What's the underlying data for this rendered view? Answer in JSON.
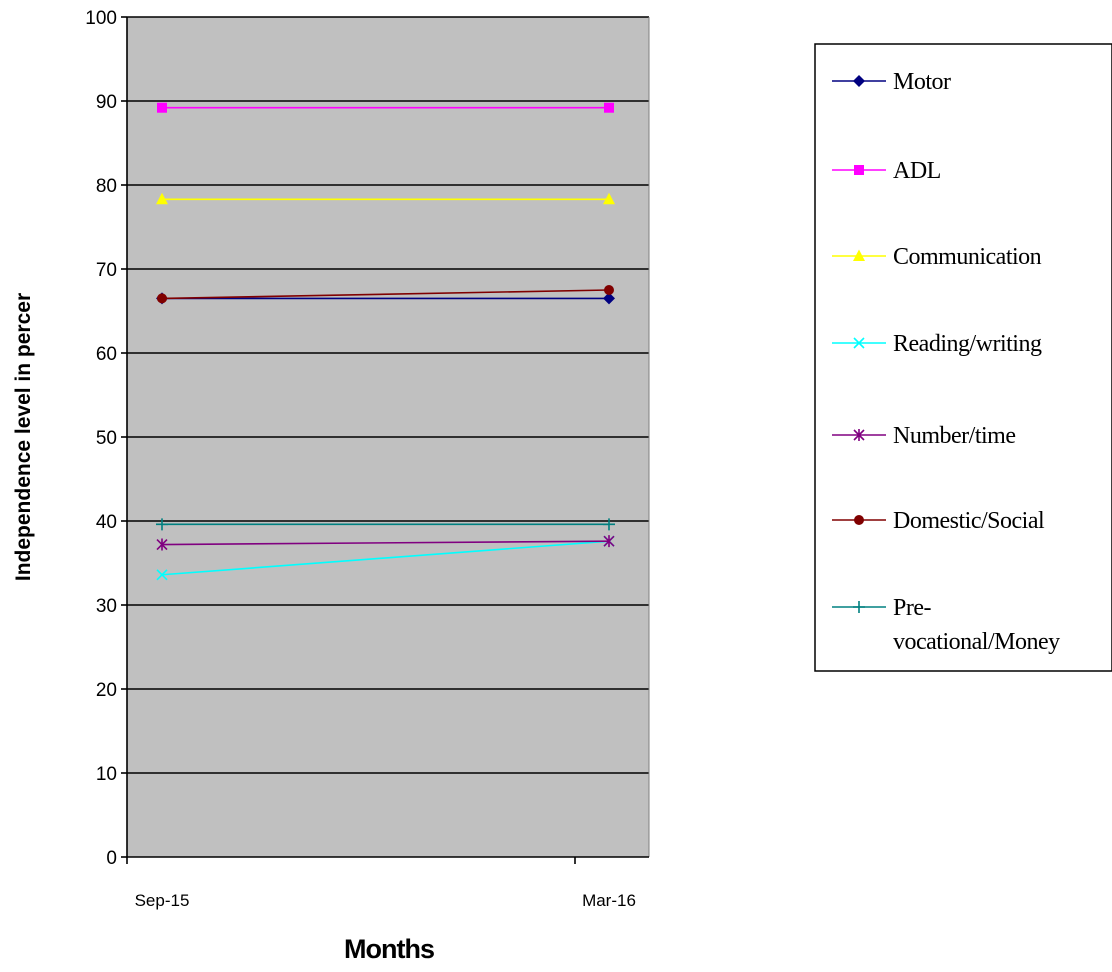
{
  "chart_data": {
    "type": "line",
    "title": "",
    "xlabel": "Months",
    "ylabel": "Independence level in percer",
    "categories": [
      "Sep-15",
      "Mar-16"
    ],
    "ylim": [
      0,
      100
    ],
    "yticks": [
      0,
      10,
      20,
      30,
      40,
      50,
      60,
      70,
      80,
      90,
      100
    ],
    "grid": true,
    "plot_background": "#c0c0c0",
    "legend_position": "right",
    "series": [
      {
        "name": "Motor",
        "values": [
          66.5,
          66.5
        ],
        "color": "#000080",
        "marker": "diamond",
        "legend_lines": [
          "Motor"
        ]
      },
      {
        "name": "ADL",
        "values": [
          89.2,
          89.2
        ],
        "color": "#ff00ff",
        "marker": "square",
        "legend_lines": [
          "ADL"
        ]
      },
      {
        "name": "Communication",
        "values": [
          78.3,
          78.3
        ],
        "color": "#ffff00",
        "marker": "triangle",
        "legend_lines": [
          "Communication"
        ]
      },
      {
        "name": "Reading/writing",
        "values": [
          33.6,
          37.6
        ],
        "color": "#00ffff",
        "marker": "x",
        "legend_lines": [
          "Reading/writing"
        ]
      },
      {
        "name": "Number/time",
        "values": [
          37.2,
          37.6
        ],
        "color": "#800080",
        "marker": "star",
        "legend_lines": [
          "Number/time"
        ]
      },
      {
        "name": "Domestic/Social",
        "values": [
          66.5,
          67.5
        ],
        "color": "#800000",
        "marker": "circle",
        "legend_lines": [
          "Domestic/Social"
        ]
      },
      {
        "name": "Pre-vocational/Money",
        "values": [
          39.6,
          39.6
        ],
        "color": "#008080",
        "marker": "plus",
        "legend_lines": [
          "Pre-",
          "vocational/Money"
        ]
      }
    ]
  }
}
